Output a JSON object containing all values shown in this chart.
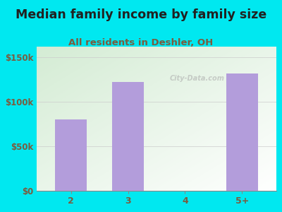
{
  "title": "Median family income by family size",
  "subtitle": "All residents in Deshler, OH",
  "categories": [
    "2",
    "3",
    "4",
    "5+"
  ],
  "values": [
    80000,
    122000,
    0,
    132000
  ],
  "bar_color": "#b39ddb",
  "bg_color": "#00e8f0",
  "yticks": [
    0,
    50000,
    100000,
    150000
  ],
  "ytick_labels": [
    "$0",
    "$50k",
    "$100k",
    "$150k"
  ],
  "ylim": [
    0,
    162000
  ],
  "title_color": "#212121",
  "subtitle_color": "#7a5c3f",
  "tick_color": "#7a5c3f",
  "title_fontsize": 12.5,
  "subtitle_fontsize": 9.5,
  "watermark": "City-Data.com"
}
